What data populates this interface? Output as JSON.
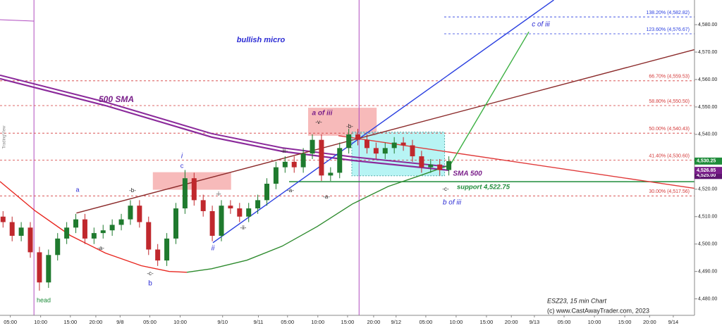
{
  "chart_data": {
    "type": "candlestick",
    "xlim": [
      0,
      114.5
    ],
    "ylim": [
      4474,
      4589
    ],
    "yticks": [
      {
        "value": 4480,
        "label": "4,480.00"
      },
      {
        "value": 4490,
        "label": "4,490.00"
      },
      {
        "value": 4500,
        "label": "4,500.00"
      },
      {
        "value": 4510,
        "label": "4,510.00"
      },
      {
        "value": 4520,
        "label": "4,520.00"
      },
      {
        "value": 4530,
        "label": "4,530.00"
      },
      {
        "value": 4540,
        "label": "4,540.00"
      },
      {
        "value": 4550,
        "label": "4,550.00"
      },
      {
        "value": 4560,
        "label": "4,560.00"
      },
      {
        "value": 4570,
        "label": "4,570.00"
      },
      {
        "value": 4580,
        "label": "4,580.00"
      }
    ],
    "xticks": [
      {
        "value": 1.7,
        "label": "05:00"
      },
      {
        "value": 6.7,
        "label": "10:00"
      },
      {
        "value": 11.6,
        "label": "15:00"
      },
      {
        "value": 15.8,
        "label": "20:00"
      },
      {
        "value": 19.8,
        "label": "9/8"
      },
      {
        "value": 24.7,
        "label": "05:00"
      },
      {
        "value": 29.7,
        "label": "10:00"
      },
      {
        "value": 36.7,
        "label": "9/10"
      },
      {
        "value": 42.6,
        "label": "9/11"
      },
      {
        "value": 47.4,
        "label": "05:00"
      },
      {
        "value": 52.4,
        "label": "10:00"
      },
      {
        "value": 57.3,
        "label": "15:00"
      },
      {
        "value": 61.6,
        "label": "20:00"
      },
      {
        "value": 65.3,
        "label": "9/12"
      },
      {
        "value": 70.2,
        "label": "05:00"
      },
      {
        "value": 75.2,
        "label": "10:00"
      },
      {
        "value": 80.2,
        "label": "15:00"
      },
      {
        "value": 84.3,
        "label": "20:00"
      },
      {
        "value": 88.1,
        "label": "9/13"
      },
      {
        "value": 93,
        "label": "05:00"
      },
      {
        "value": 98,
        "label": "10:00"
      },
      {
        "value": 103,
        "label": "15:00"
      },
      {
        "value": 107.1,
        "label": "20:00"
      },
      {
        "value": 111,
        "label": "9/14"
      }
    ],
    "up_color": "#1f7a2e",
    "down_color": "#c0282d",
    "x": [
      0.5,
      2,
      3.5,
      5,
      6.5,
      8,
      9.5,
      11,
      12.5,
      14,
      15.5,
      17,
      18.5,
      20,
      21.5,
      23,
      24.5,
      26,
      27.5,
      29,
      30.5,
      32,
      33.5,
      35,
      36.5,
      38,
      39.5,
      41,
      42.5,
      44,
      45.5,
      47,
      48.5,
      50,
      51.5,
      53,
      54.5,
      56,
      57.5,
      59,
      60.5,
      62,
      63.5,
      65,
      66.5,
      68,
      69.5,
      71,
      72.5,
      74
    ],
    "open": [
      4510,
      4508,
      4503,
      4506,
      4497,
      4486,
      4496,
      4502,
      4506,
      4509,
      4502,
      4504,
      4505,
      4507,
      4509,
      4514,
      4508,
      4498,
      4494,
      4502,
      4513,
      4524,
      4516,
      4512,
      4503,
      4514,
      4513,
      4510,
      4513,
      4516,
      4522,
      4528,
      4530,
      4528,
      4533,
      4538,
      4525,
      4526,
      4535,
      4540,
      4538,
      4535,
      4533,
      4535,
      4537,
      4536,
      4532,
      4528,
      4529,
      4527
    ],
    "high": [
      4512,
      4510,
      4508,
      4508,
      4499,
      4498,
      4504,
      4508,
      4511,
      4511,
      4506,
      4507,
      4509,
      4511,
      4516,
      4516,
      4510,
      4500,
      4504,
      4515,
      4527,
      4526,
      4518,
      4514,
      4516,
      4516,
      4515,
      4515,
      4518,
      4524,
      4530,
      4532,
      4532,
      4535,
      4540,
      4540,
      4528,
      4537,
      4542,
      4542,
      4540,
      4537,
      4537,
      4539,
      4539,
      4538,
      4534,
      4531,
      4531,
      4532
    ],
    "low": [
      4506,
      4501,
      4501,
      4495,
      4483,
      4484,
      4494,
      4500,
      4504,
      4500,
      4500,
      4502,
      4503,
      4505,
      4507,
      4506,
      4496,
      4492,
      4492,
      4500,
      4511,
      4514,
      4510,
      4501,
      4501,
      4511,
      4508,
      4508,
      4511,
      4514,
      4520,
      4526,
      4526,
      4526,
      4531,
      4523,
      4523,
      4524,
      4533,
      4536,
      4533,
      4531,
      4531,
      4533,
      4534,
      4530,
      4526,
      4526,
      4525,
      4525
    ],
    "close": [
      4508,
      4503,
      4506,
      4497,
      4486,
      4496,
      4502,
      4506,
      4509,
      4502,
      4504,
      4505,
      4507,
      4509,
      4514,
      4508,
      4498,
      4494,
      4502,
      4513,
      4524,
      4516,
      4512,
      4503,
      4514,
      4513,
      4510,
      4513,
      4516,
      4522,
      4528,
      4530,
      4528,
      4533,
      4538,
      4525,
      4526,
      4535,
      4540,
      4538,
      4535,
      4533,
      4535,
      4537,
      4536,
      4532,
      4528,
      4529,
      4527,
      4530.25
    ],
    "overlays": [
      {
        "color": "#8b2a9b",
        "x": [
          0,
          17.4,
          34.9,
          46.5,
          58.1,
          74
        ],
        "values": [
          4560.3,
          4550.5,
          4539,
          4533.8,
          4530.5,
          4526.9
        ]
      },
      {
        "color": "#e8261f",
        "x": [
          0,
          5.8,
          11.6,
          17.4,
          23.3,
          27.9,
          30.8
        ],
        "values": [
          4522.8,
          4512.1,
          4503.1,
          4496.7,
          4492.1,
          4490,
          4489.7
        ]
      },
      {
        "color": "#2e8b2e",
        "x": [
          30.8,
          34.9,
          40.7,
          46.5,
          52.3,
          58.1,
          64,
          69.8,
          74
        ],
        "values": [
          4489.7,
          4491,
          4494.1,
          4499.2,
          4506.4,
          4514.6,
          4521,
          4525.4,
          4528.7
        ]
      },
      {
        "color": "#2a3fe0",
        "x": [
          35.1,
          91.3
        ],
        "values": [
          4500.5,
          4589
        ]
      },
      {
        "color": "#8b2a2a",
        "x": [
          12.6,
          119.1
        ],
        "values": [
          4511.3,
          4573.6
        ]
      },
      {
        "color": "#e03a3a",
        "x": [
          55.8,
          114.5
        ],
        "values": [
          4539.5,
          4520.3
        ]
      },
      {
        "color": "#3cb043",
        "x": [
          74,
          87.2
        ],
        "values": [
          4528,
          4577.4
        ]
      }
    ],
    "fib_levels": [
      {
        "value": 4582.82,
        "label": "138.20% (4,582.82)",
        "color": "#2a3fe0"
      },
      {
        "value": 4576.67,
        "label": "123.60% (4,576.67)",
        "color": "#2a3fe0"
      },
      {
        "value": 4559.53,
        "label": "66.70% (4,559.53)",
        "color": "#d43a3a"
      },
      {
        "value": 4550.5,
        "label": "58.80% (4,550.50)",
        "color": "#d43a3a"
      },
      {
        "value": 4540.43,
        "label": "50.00% (4,540.43)",
        "color": "#d43a3a"
      },
      {
        "value": 4530.6,
        "label": "41.40% (4,530.60)",
        "color": "#d43a3a"
      },
      {
        "value": 4517.56,
        "label": "30.00% (4,517.56)",
        "color": "#d43a3a"
      }
    ],
    "support": {
      "value": 4522.75,
      "label": "support 4,522.75",
      "color": "#1e8c3a"
    },
    "zones": [
      {
        "x": [
          25.2,
          38.1
        ],
        "values": [
          4526.2,
          4519.8
        ],
        "color": "#f4a3a3"
      },
      {
        "x": [
          50.8,
          62.1
        ],
        "values": [
          4549.7,
          4539.5
        ],
        "color": "#f4a3a3"
      },
      {
        "x": [
          58,
          73.3
        ],
        "values": [
          4540.8,
          4524.9
        ],
        "color": "#9ff0f0"
      }
    ],
    "vlines": [
      5.6,
      59.2
    ],
    "price_tags": [
      {
        "value": 4525,
        "label": "4,525.00",
        "color": "#5e1470"
      },
      {
        "value": 4526.85,
        "label": "4,526.85",
        "color": "#7a1f8a"
      },
      {
        "value": 4530.25,
        "label": "4,530.25",
        "color": "#1e8c3a"
      }
    ],
    "annotations": [
      {
        "text": "bullish micro",
        "color": "#2b2bd4"
      },
      {
        "text": "500 SMA",
        "color": "#7a1f8a"
      },
      {
        "text": "a of iii",
        "color": "#7a1f8a"
      },
      {
        "text": "-v-",
        "color": "#222222"
      },
      {
        "text": "-b-",
        "color": "#222222"
      },
      {
        "text": "-iii-",
        "color": "#222222"
      },
      {
        "text": "i",
        "color": "#2b2bd4"
      },
      {
        "text": "c",
        "color": "#2b2bd4"
      },
      {
        "text": "-b-",
        "color": "#222222"
      },
      {
        "text": "a",
        "color": "#2b2bd4"
      },
      {
        "text": "-i-",
        "color": "#222222"
      },
      {
        "text": "-a-",
        "color": "#222222"
      },
      {
        "text": "-a-",
        "color": "#222222"
      },
      {
        "text": "-ii-",
        "color": "#222222"
      },
      {
        "text": "ii",
        "color": "#2b2bd4"
      },
      {
        "text": "-a-",
        "color": "#222222"
      },
      {
        "text": "-c-",
        "color": "#222222"
      },
      {
        "text": "b",
        "color": "#2b2bd4"
      },
      {
        "text": "head",
        "color": "#1e8c3a"
      },
      {
        "text": "SMA 500",
        "color": "#7a1f8a"
      },
      {
        "text": "-c-",
        "color": "#222222"
      },
      {
        "text": "b of iii",
        "color": "#2b2bd4"
      },
      {
        "text": "c of iii",
        "color": "#2b2bd4"
      },
      {
        "text": "ESZ23, 15 min Chart",
        "color": "#222222"
      },
      {
        "text": "(c) www.CastAwayTrader.com, 2023",
        "color": "#222222"
      },
      {
        "text": "TradingView",
        "color": "#888888"
      }
    ]
  }
}
